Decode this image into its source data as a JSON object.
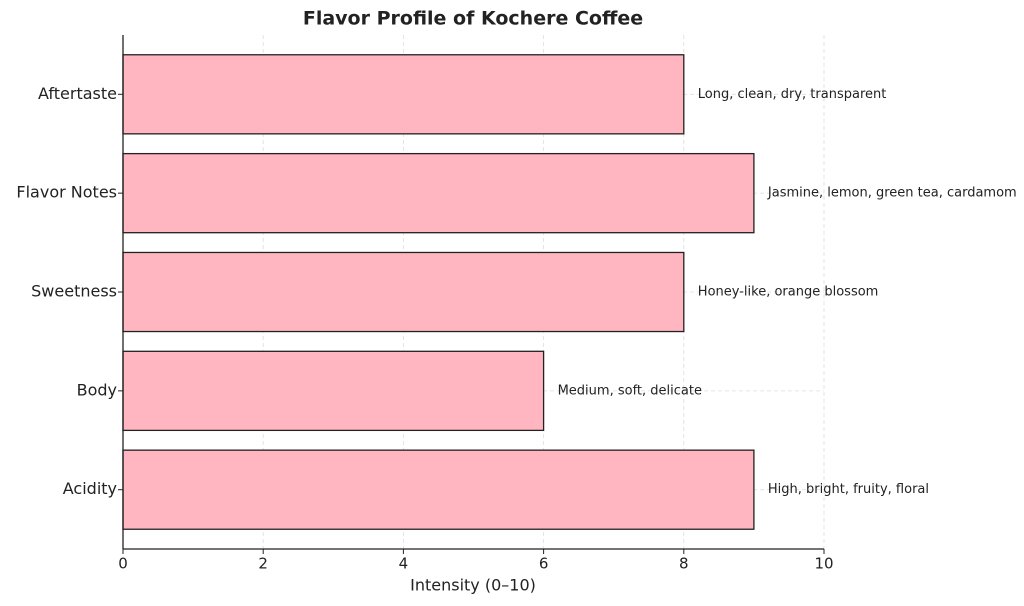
{
  "chart_data": {
    "type": "barh",
    "title": "Flavor Profile of Kochere Coffee",
    "x_label": "Intensity (0–10)",
    "categories": [
      "Acidity",
      "Body",
      "Sweetness",
      "Flavor Notes",
      "Aftertaste"
    ],
    "values": [
      9,
      6,
      8,
      9,
      8
    ],
    "annotations": [
      "High, bright, fruity, floral",
      "Medium, soft, delicate",
      "Honey-like, orange blossom",
      "Jasmine, lemon, green tea, cardamom",
      "Long, clean, dry, transparent"
    ],
    "color": "#ffb6c1",
    "edge_color": "#222222",
    "xlim": [
      0,
      10
    ],
    "xticks": [
      0,
      2,
      4,
      6,
      8,
      10
    ],
    "grid": true
  }
}
